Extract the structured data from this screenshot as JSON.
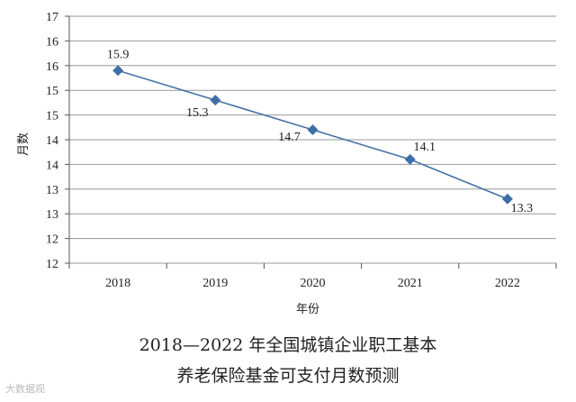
{
  "chart_data": {
    "type": "line",
    "xlabel": "年份",
    "ylabel": "月数",
    "categories": [
      "2018",
      "2019",
      "2020",
      "2021",
      "2022"
    ],
    "y_tick_labels": [
      "12",
      "12",
      "13",
      "13",
      "14",
      "14",
      "15",
      "15",
      "16",
      "16",
      "17"
    ],
    "ylim": [
      12,
      17
    ],
    "grid": true,
    "series": [
      {
        "values": [
          15.9,
          15.3,
          14.7,
          14.1,
          13.3
        ],
        "labels": [
          "15.9",
          "15.3",
          "14.7",
          "14.1",
          "13.3"
        ]
      }
    ],
    "colors": {
      "line": "#4472a8",
      "marker": "#3e6ea8",
      "grid": "#999999"
    }
  },
  "caption": {
    "line1": "2018—2022 年全国城镇企业职工基本",
    "line2": "养老保险基金可支付月数预测"
  },
  "watermark": "大数据观"
}
